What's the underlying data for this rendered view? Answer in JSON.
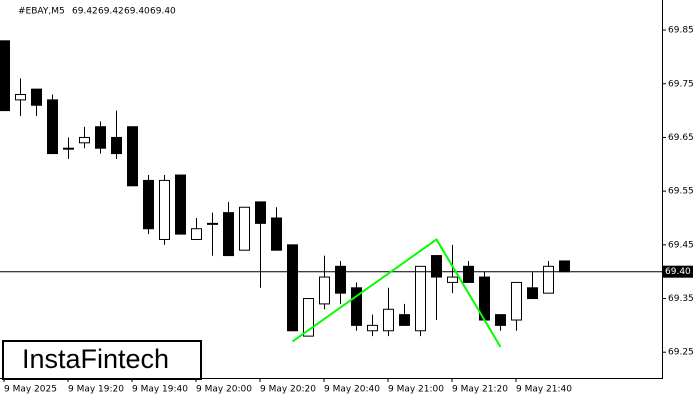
{
  "chart_data": {
    "type": "candlestick",
    "symbol": "#EBAY,M5",
    "header_values": [
      {
        "value": 69.42,
        "label": "69.42"
      },
      {
        "value": 69.42,
        "label": "69.42"
      },
      {
        "value": 69.4,
        "label": "69.40"
      },
      {
        "value": 69.4,
        "label": "69.40"
      }
    ],
    "categories": [
      "9 May 2025",
      null,
      null,
      null,
      "9 May 19:20",
      null,
      null,
      null,
      "9 May 19:40",
      null,
      null,
      null,
      "9 May 20:00",
      null,
      null,
      null,
      "9 May 20:20",
      null,
      null,
      null,
      "9 May 20:40",
      null,
      null,
      null,
      "9 May 21:00",
      null,
      null,
      null,
      "9 May 21:20",
      null,
      null,
      null,
      "9 May 21:40",
      null,
      null,
      null
    ],
    "open": [
      69.83,
      69.72,
      69.74,
      69.72,
      69.63,
      69.64,
      69.67,
      69.65,
      69.67,
      69.57,
      69.46,
      69.58,
      69.46,
      69.49,
      69.51,
      69.44,
      69.53,
      69.5,
      69.45,
      69.28,
      69.34,
      69.41,
      69.37,
      69.29,
      69.29,
      69.32,
      69.29,
      69.43,
      69.38,
      69.41,
      69.39,
      69.32,
      69.31,
      69.37,
      69.36,
      69.42
    ],
    "high": [
      69.83,
      69.76,
      69.74,
      69.73,
      69.65,
      69.67,
      69.68,
      69.7,
      69.67,
      69.58,
      69.58,
      69.58,
      69.5,
      69.51,
      69.53,
      69.52,
      69.53,
      69.52,
      69.45,
      69.35,
      69.43,
      69.42,
      69.38,
      69.32,
      69.37,
      69.34,
      69.41,
      69.43,
      69.45,
      69.42,
      69.4,
      69.32,
      69.38,
      69.4,
      69.42,
      69.42
    ],
    "low": [
      69.7,
      69.69,
      69.69,
      69.62,
      69.61,
      69.63,
      69.62,
      69.61,
      69.56,
      69.47,
      69.45,
      69.47,
      69.46,
      69.43,
      69.43,
      69.44,
      69.37,
      69.44,
      69.29,
      69.28,
      69.33,
      69.34,
      69.29,
      69.28,
      69.28,
      69.3,
      69.28,
      69.31,
      69.36,
      69.38,
      69.31,
      69.29,
      69.29,
      69.35,
      69.36,
      69.4
    ],
    "close": [
      69.7,
      69.73,
      69.71,
      69.62,
      69.63,
      69.65,
      69.63,
      69.62,
      69.56,
      69.48,
      69.57,
      69.47,
      69.48,
      69.49,
      69.43,
      69.52,
      69.49,
      69.44,
      69.29,
      69.35,
      69.39,
      69.36,
      69.3,
      69.3,
      69.33,
      69.3,
      69.41,
      69.39,
      69.39,
      69.38,
      69.31,
      69.3,
      69.38,
      69.35,
      69.41,
      69.4
    ],
    "up_color": "#ffffff",
    "down_color": "#000000",
    "ylim": [
      69.202,
      69.906
    ],
    "yticks": [
      69.25,
      69.35,
      69.45,
      69.55,
      69.65,
      69.75,
      69.85
    ],
    "price_line": {
      "value": 69.4,
      "label": "69.40"
    },
    "pattern": {
      "color": "#00ff00",
      "x": [
        18,
        27,
        31
      ],
      "y": [
        69.27,
        69.46,
        69.26
      ]
    },
    "logo": "InstaFintech"
  }
}
